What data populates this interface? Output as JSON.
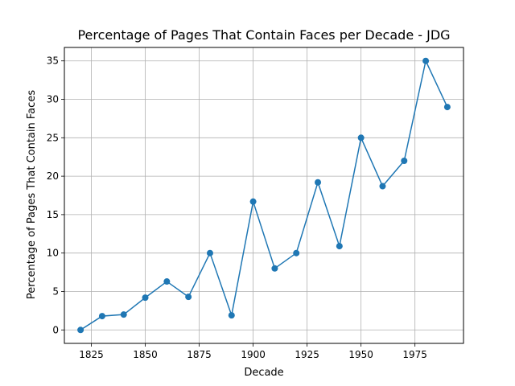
{
  "chart_data": {
    "type": "line",
    "title": "Percentage of Pages That Contain Faces per Decade - JDG",
    "xlabel": "Decade",
    "ylabel": "Percentage of Pages That Contain Faces",
    "xlim": [
      1812.5,
      1997.5
    ],
    "ylim": [
      -1.75,
      36.75
    ],
    "xticks": [
      1825,
      1850,
      1875,
      1900,
      1925,
      1950,
      1975
    ],
    "yticks": [
      0,
      5,
      10,
      15,
      20,
      25,
      30,
      35
    ],
    "grid": true,
    "series": [
      {
        "color": "#1f77b4",
        "marker": "circle",
        "x": [
          1820,
          1830,
          1840,
          1850,
          1860,
          1870,
          1880,
          1890,
          1900,
          1910,
          1920,
          1930,
          1940,
          1950,
          1960,
          1970,
          1980,
          1990
        ],
        "y": [
          0.0,
          1.8,
          2.0,
          4.2,
          6.3,
          4.3,
          10.0,
          1.9,
          16.7,
          8.0,
          10.0,
          19.2,
          10.9,
          25.0,
          18.7,
          22.0,
          35.0,
          29.0
        ]
      }
    ]
  }
}
